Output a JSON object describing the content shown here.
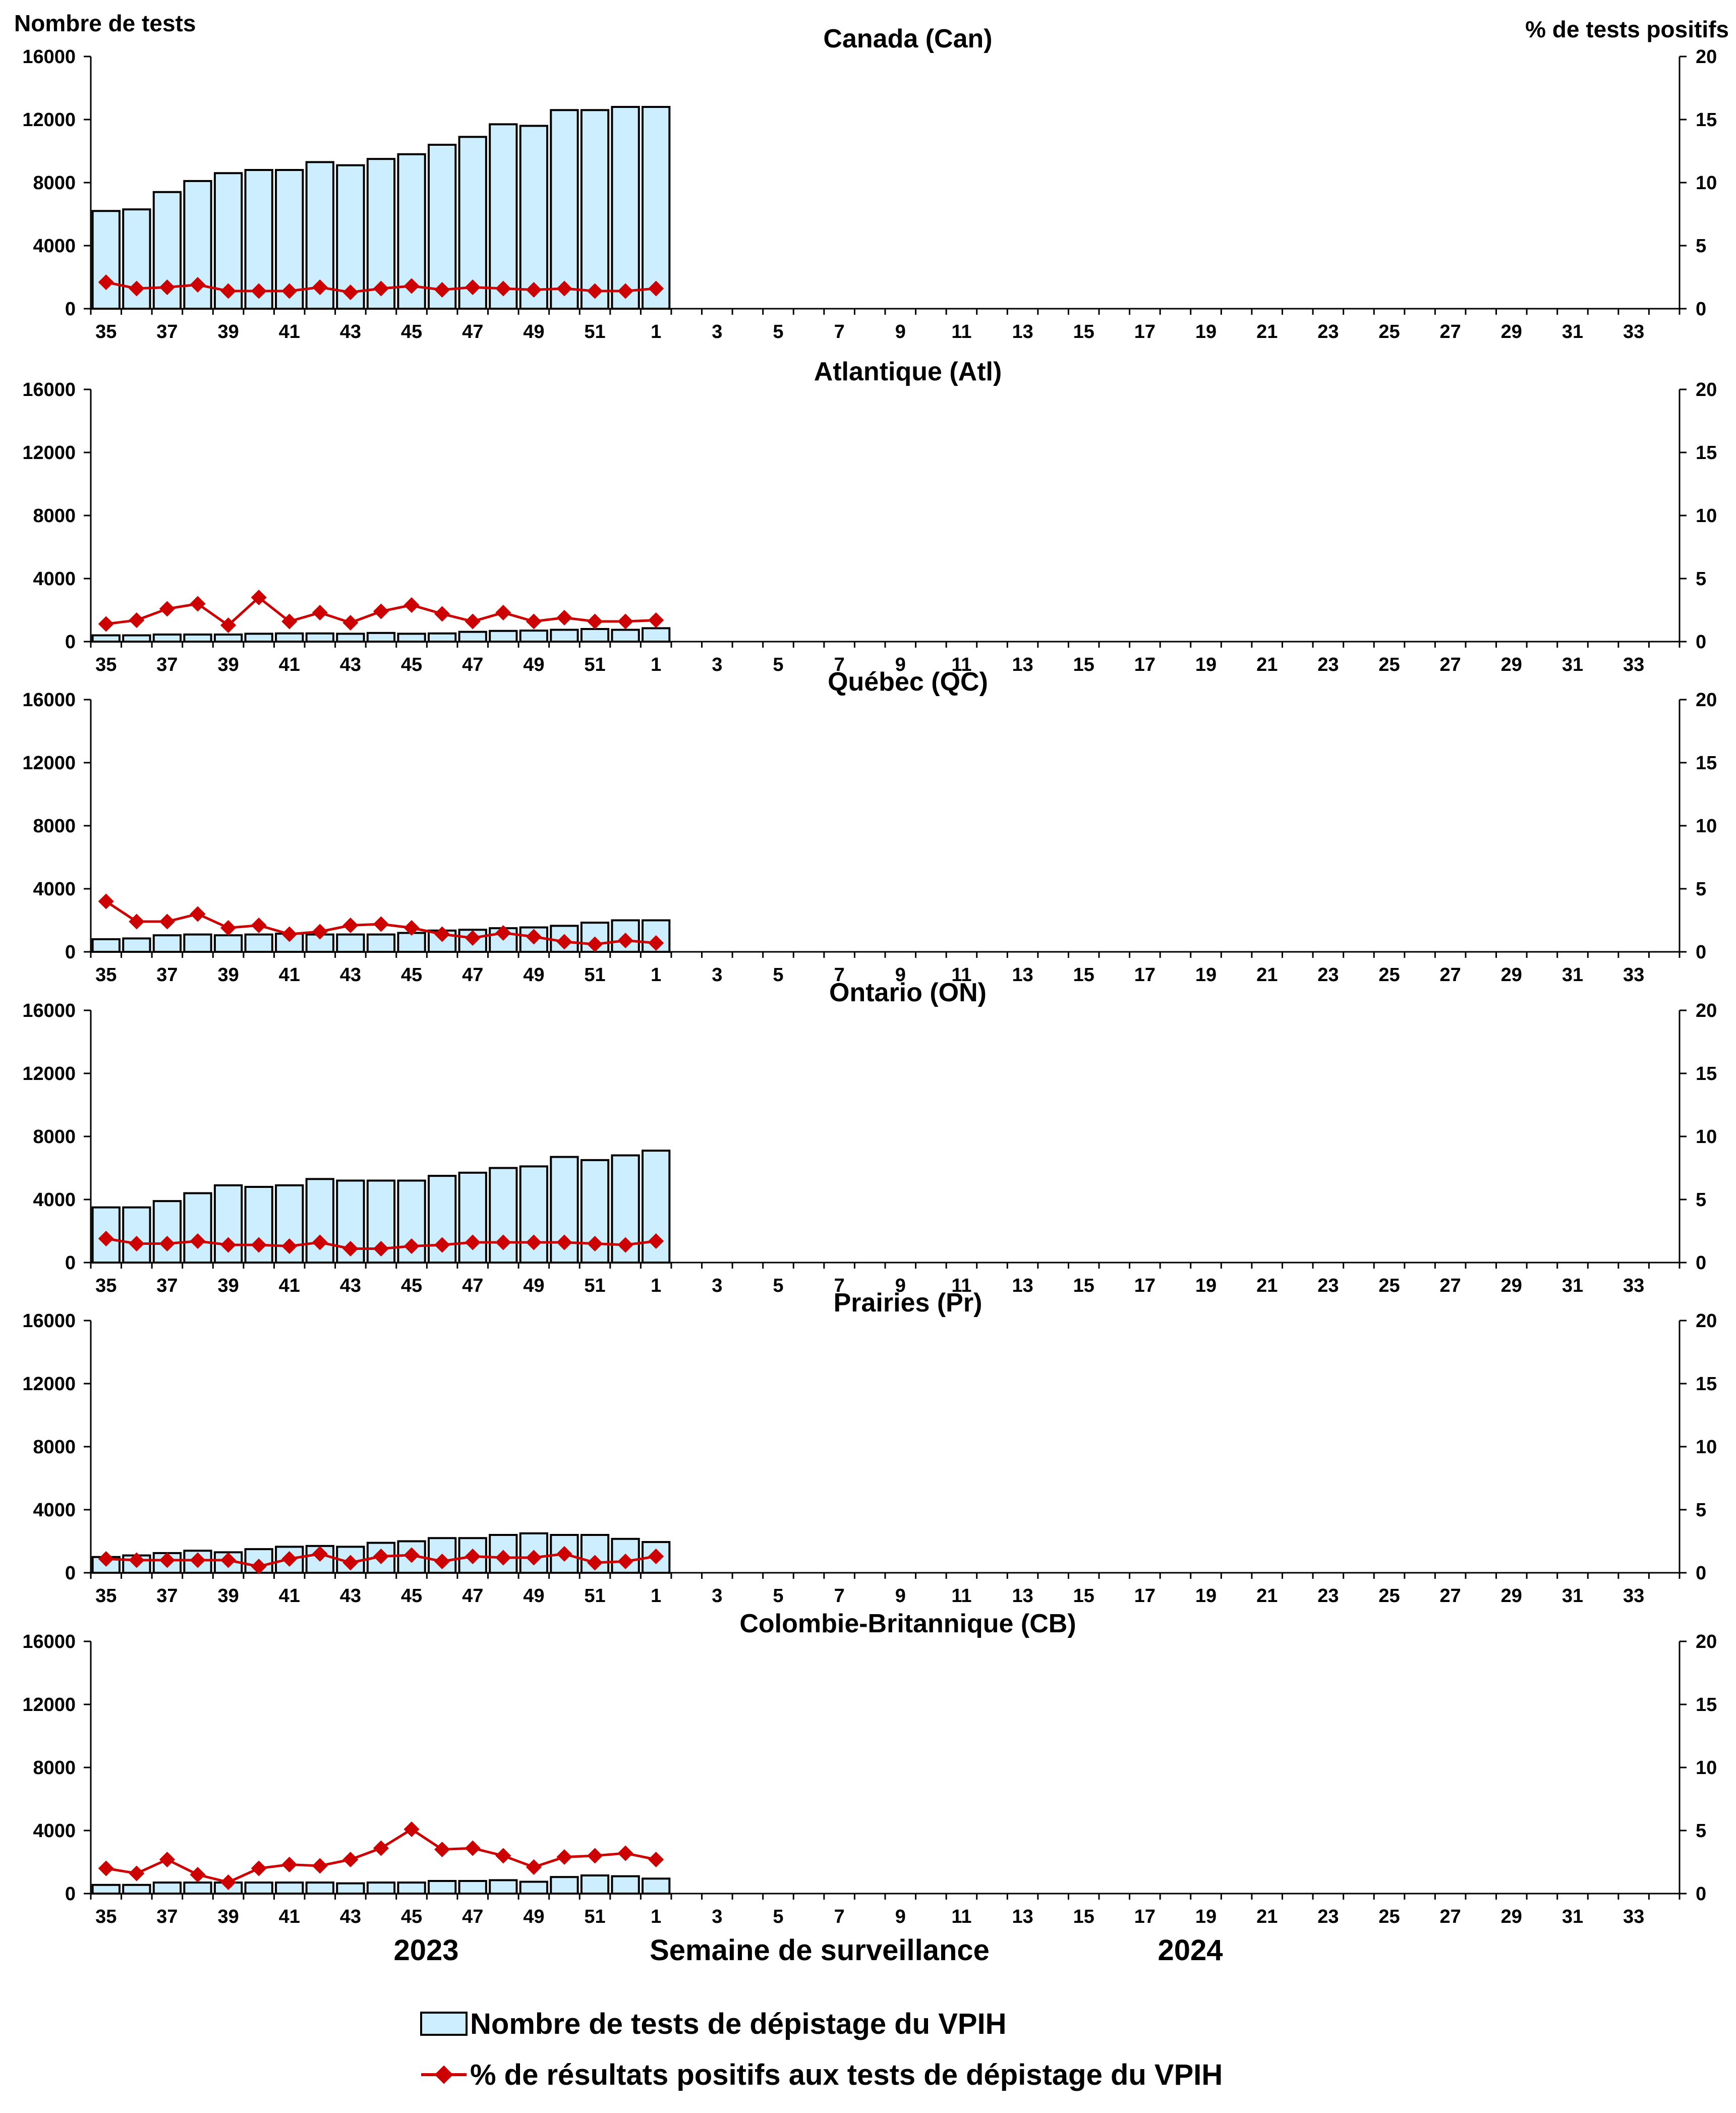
{
  "chart_data": {
    "type": "bar",
    "left_axis_title": "Nombre de tests",
    "right_axis_title": "% de tests positifs",
    "xlabel": "Semaine de surveillance",
    "year_labels": [
      "2023",
      "2024"
    ],
    "categories": [
      "35",
      "36",
      "37",
      "38",
      "39",
      "40",
      "41",
      "42",
      "43",
      "44",
      "45",
      "46",
      "47",
      "48",
      "49",
      "50",
      "51",
      "52",
      "1",
      "2",
      "3",
      "4",
      "5",
      "6",
      "7",
      "8",
      "9",
      "10",
      "11",
      "12",
      "13",
      "14",
      "15",
      "16",
      "17",
      "18",
      "19",
      "20",
      "21",
      "22",
      "23",
      "24",
      "25",
      "26",
      "27",
      "28",
      "29",
      "30",
      "31",
      "32",
      "33",
      "34"
    ],
    "tick_labels": [
      "35",
      "37",
      "39",
      "41",
      "43",
      "45",
      "47",
      "49",
      "51",
      "1",
      "3",
      "5",
      "7",
      "9",
      "11",
      "13",
      "15",
      "17",
      "19",
      "21",
      "23",
      "25",
      "27",
      "29",
      "31",
      "33"
    ],
    "ylim_left": [
      0,
      16000
    ],
    "yticks_left": [
      "0",
      "4000",
      "8000",
      "12000",
      "16000"
    ],
    "ylim_right": [
      0,
      20
    ],
    "yticks_right": [
      "0",
      "5",
      "10",
      "15",
      "20"
    ],
    "legend": {
      "bars": "Nombre de tests de dépistage du VPIH",
      "line": "% de résultats positifs aux tests de dépistage du VPIH"
    },
    "colors": {
      "bar_fill": "#cceeff",
      "bar_stroke": "#000000",
      "line": "#cc0000"
    },
    "panels": [
      {
        "title": "Canada (Can)",
        "tests": [
          6200,
          6300,
          7400,
          8100,
          8600,
          8800,
          8800,
          9300,
          9100,
          9500,
          9800,
          10400,
          10900,
          11700,
          11600,
          12600,
          12600,
          12800,
          12800
        ],
        "pct_positive": [
          2.1,
          1.6,
          1.7,
          1.9,
          1.4,
          1.4,
          1.4,
          1.7,
          1.3,
          1.6,
          1.8,
          1.5,
          1.7,
          1.6,
          1.5,
          1.6,
          1.4,
          1.4,
          1.6
        ]
      },
      {
        "title": "Atlantique (Atl)",
        "tests": [
          400,
          400,
          450,
          450,
          450,
          500,
          520,
          520,
          500,
          550,
          500,
          520,
          620,
          680,
          700,
          750,
          800,
          750,
          850
        ],
        "pct_positive": [
          1.4,
          1.7,
          2.6,
          3.0,
          1.3,
          3.5,
          1.6,
          2.3,
          1.5,
          2.4,
          2.9,
          2.2,
          1.6,
          2.3,
          1.6,
          1.9,
          1.6,
          1.6,
          1.7
        ]
      },
      {
        "title": "Québec (QC)",
        "tests": [
          800,
          850,
          1050,
          1100,
          1050,
          1100,
          1150,
          1100,
          1100,
          1100,
          1200,
          1350,
          1400,
          1500,
          1550,
          1650,
          1850,
          2000,
          2000
        ],
        "pct_positive": [
          4.0,
          2.4,
          2.4,
          3.0,
          1.9,
          2.1,
          1.4,
          1.6,
          2.1,
          2.2,
          1.9,
          1.4,
          1.1,
          1.5,
          1.2,
          0.8,
          0.6,
          0.9,
          0.7
        ]
      },
      {
        "title": "Ontario (ON)",
        "tests": [
          3500,
          3500,
          3900,
          4400,
          4900,
          4800,
          4900,
          5300,
          5200,
          5200,
          5200,
          5500,
          5700,
          6000,
          6100,
          6700,
          6500,
          6800,
          7100
        ],
        "pct_positive": [
          1.9,
          1.5,
          1.5,
          1.7,
          1.4,
          1.4,
          1.3,
          1.6,
          1.1,
          1.1,
          1.3,
          1.4,
          1.6,
          1.6,
          1.6,
          1.6,
          1.5,
          1.4,
          1.7
        ]
      },
      {
        "title": "Prairies (Pr)",
        "tests": [
          1000,
          1100,
          1250,
          1400,
          1300,
          1500,
          1650,
          1700,
          1650,
          1900,
          2000,
          2200,
          2200,
          2400,
          2500,
          2400,
          2400,
          2150,
          1950
        ],
        "pct_positive": [
          1.1,
          1.0,
          1.0,
          1.0,
          1.0,
          0.5,
          1.1,
          1.5,
          0.8,
          1.3,
          1.4,
          0.9,
          1.3,
          1.2,
          1.2,
          1.5,
          0.8,
          0.9,
          1.3
        ]
      },
      {
        "title": "Colombie-Britannique (CB)",
        "tests": [
          550,
          550,
          700,
          700,
          700,
          700,
          700,
          700,
          650,
          700,
          700,
          800,
          800,
          850,
          750,
          1050,
          1150,
          1100,
          950
        ],
        "pct_positive": [
          2.0,
          1.6,
          2.7,
          1.5,
          0.9,
          2.0,
          2.3,
          2.2,
          2.7,
          3.6,
          5.1,
          3.5,
          3.6,
          3.0,
          2.1,
          2.9,
          3.0,
          3.2,
          2.7
        ]
      }
    ]
  }
}
